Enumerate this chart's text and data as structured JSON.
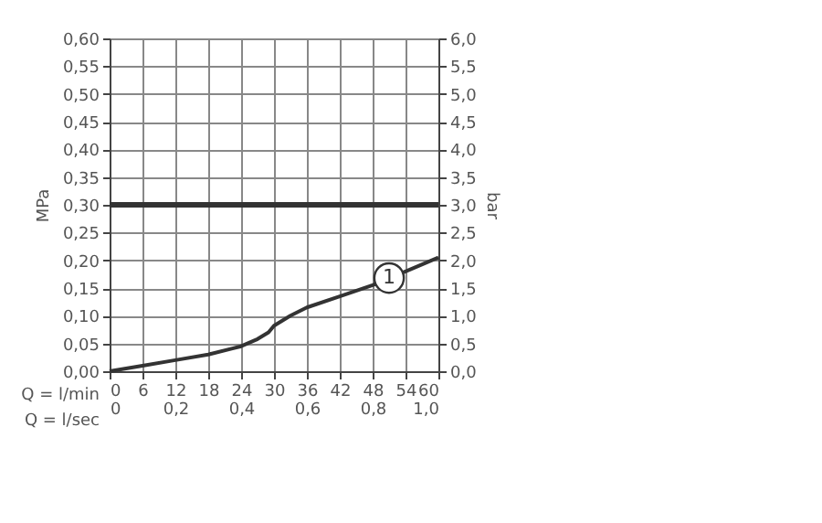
{
  "chart_data": {
    "type": "line",
    "ylabel": "MPa",
    "y2label": "bar",
    "xlabel": "Q = l/min",
    "x2label": "Q = l/sec",
    "x": [
      0,
      6,
      12,
      18,
      24,
      27,
      29,
      30,
      33,
      36,
      42,
      48,
      54,
      60
    ],
    "series": [
      {
        "color": "#333333",
        "values": [
          0,
          0.01,
          0.02,
          0.03,
          0.045,
          0.058,
          0.07,
          0.082,
          0.1,
          0.115,
          0.135,
          0.155,
          0.18,
          0.205
        ]
      }
    ],
    "xlim": [
      0,
      60
    ],
    "xticks": [
      0,
      6,
      12,
      18,
      24,
      30,
      36,
      42,
      48,
      54,
      60
    ],
    "x2lim": [
      0,
      1
    ],
    "x2ticks": [
      0,
      {
        "value": 0.2,
        "label": "0,2"
      },
      {
        "value": 0.4,
        "label": "0,4"
      },
      {
        "value": 0.6,
        "label": "0,6"
      },
      {
        "value": 0.8,
        "label": "0,8"
      },
      {
        "value": 1,
        "label": "1,0"
      }
    ],
    "ylim": [
      0,
      0.6
    ],
    "yticks": [
      {
        "value": 0,
        "label": "0,00"
      },
      {
        "value": 0.05,
        "label": "0,05"
      },
      {
        "value": 0.1,
        "label": "0,10"
      },
      {
        "value": 0.15,
        "label": "0,15"
      },
      {
        "value": 0.2,
        "label": "0,20"
      },
      {
        "value": 0.25,
        "label": "0,25"
      },
      {
        "value": 0.3,
        "label": "0,30"
      },
      {
        "value": 0.35,
        "label": "0,35"
      },
      {
        "value": 0.4,
        "label": "0,40"
      },
      {
        "value": 0.45,
        "label": "0,45"
      },
      {
        "value": 0.5,
        "label": "0,50"
      },
      {
        "value": 0.55,
        "label": "0,55"
      },
      {
        "value": 0.6,
        "label": "0,60"
      }
    ],
    "y2lim": [
      0,
      6
    ],
    "y2ticks": [
      {
        "value": 0,
        "label": "0,0"
      },
      {
        "value": 0.5,
        "label": "0,5"
      },
      {
        "value": 1,
        "label": "1,0"
      },
      {
        "value": 1.5,
        "label": "1,5"
      },
      {
        "value": 2,
        "label": "2,0"
      },
      {
        "value": 2.5,
        "label": "2,5"
      },
      {
        "value": 3,
        "label": "3,0"
      },
      {
        "value": 3.5,
        "label": "3,5"
      },
      {
        "value": 4,
        "label": "4,0"
      },
      {
        "value": 4.5,
        "label": "4,5"
      },
      {
        "value": 5,
        "label": "5,0"
      },
      {
        "value": 5.5,
        "label": "5,5"
      },
      {
        "value": 6,
        "label": "6,0"
      }
    ],
    "ref_lines": [
      {
        "axis": "y",
        "value": 0.3,
        "color": "#333333"
      }
    ],
    "annotations": [
      {
        "text": "1",
        "x": 51,
        "y": 0.168
      }
    ],
    "grid": true
  }
}
